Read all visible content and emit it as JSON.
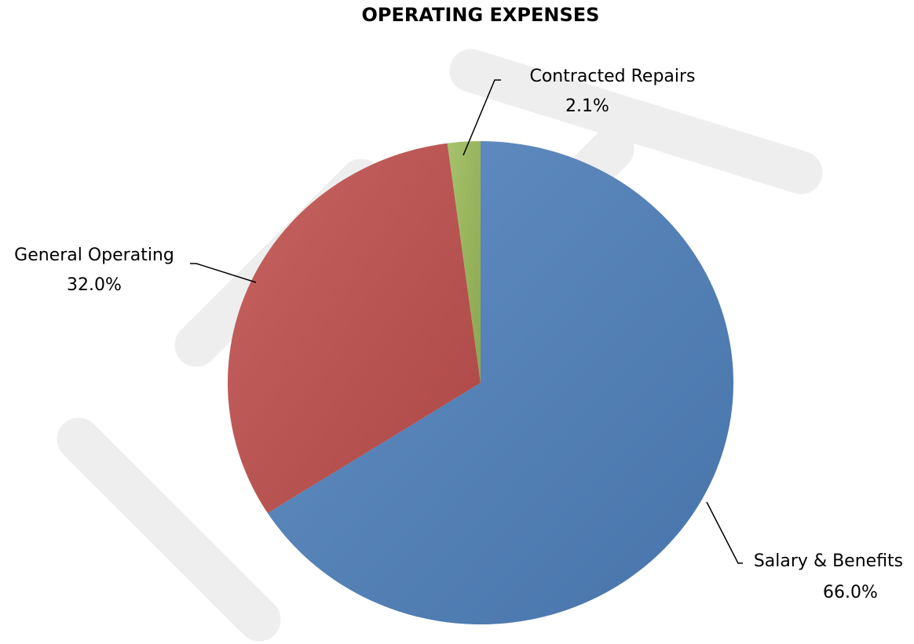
{
  "chart_data": {
    "type": "pie",
    "title": "OPERATING EXPENSES",
    "categories": [
      "Salary & Benefits",
      "General Operating",
      "Contracted Repairs"
    ],
    "values": [
      66.0,
      32.0,
      2.1
    ],
    "value_labels": [
      "66.0%",
      "32.0%",
      "2.1%"
    ],
    "colors": [
      "#4f81bd",
      "#c0504d",
      "#9bbb59"
    ]
  }
}
